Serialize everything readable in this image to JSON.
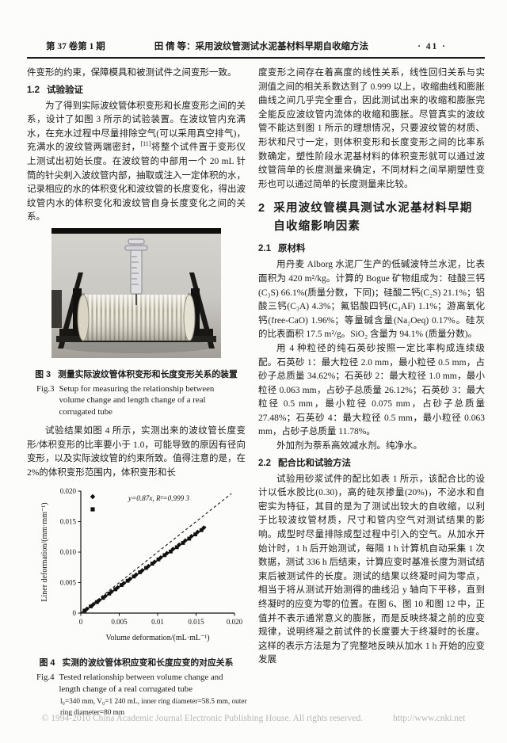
{
  "header": {
    "volume_issue": "第 37 卷第 1 期",
    "running_title": "田  倩 等：采用波纹管测试水泥基材料早期自收缩方法",
    "page_number": "· 41 ·"
  },
  "left": {
    "para_carryover": "件变形的约束，保障模具和被测试件之间变形一致。",
    "h12": {
      "num": "1.2",
      "label": "试验验证"
    },
    "para1a": "为了得到实际波纹管体积变形和长度变形之间的关系，设计了如图 3 所示的试验装置。在波纹管内充满水，在充水过程中尽量排除空气(可以采用真空排气)，充满水的波纹管两端密封，",
    "para1_sup": "[11]",
    "para1b": "将整个试件置于变形仪上测试出初始长度。在波纹管的中部用一个 20 mL 针筒的针尖刺入波纹管内部，抽取或注入一定体积的水，记录相应的水的体积变化和波纹管的长度变化，得出波纹管内水的体积变化和波纹管自身长度变化之间的关系。",
    "fig3": {
      "label_zh": "图 3",
      "caption_zh": "测量实际波纹管体积变形和长度变形关系的装置",
      "label_en": "Fig.3",
      "caption_en": "Setup for measuring the relationship between volume change and length change of a real corrugated tube"
    },
    "para2": "试验结果如图 4 所示，实测出来的波纹管长度变形/体积变形的比率要小于 1.0，可能导致的原因有径向变形，以及实际波纹管的约束所致。值得注意的是，在 2%的体积变形范围内，体积变形和长",
    "fig4": {
      "label_zh": "图 4",
      "caption_zh": "实测的波纹管体积应变和长度应变的对应关系",
      "label_en": "Fig.4",
      "caption_en": "Tested relationship between volume change and length change of a real corrugated tube",
      "note": "l₀=340 mm, V₀=1 240 mL, inner ring diameter=58.5 mm, outer ring diameter=80 mm"
    }
  },
  "right": {
    "para_carryover": "度变形之间存在着高度的线性关系，线性回归关系与实测值之间的相关系数达到了 0.999 以上，收缩曲线和膨胀曲线之间几乎完全重合，因此测试出来的收缩和膨胀完全能反应波纹管内流体的收缩和膨胀。尽管真实的波纹管不能达到图 1 所示的理想情况，只要波纹管的材质、形状和尺寸一定，则体积变形和长度变形之间的比率系数确定，塑性阶段水泥基材料的体积变形就可以通过波纹管简单的长度测量来确定，不同材料之间早期塑性变形也可以通过简单的长度测量来比较。",
    "h2": {
      "num": "2",
      "label": "采用波纹管模具测试水泥基材料早期自收缩影响因素"
    },
    "h21": {
      "num": "2.1",
      "label": "原材料"
    },
    "para_materials1": "用丹麦 Alborg 水泥厂生产的低碱波特兰水泥，比表面积为 420 m²/kg。计算的 Bogue 矿物组成为：硅酸三钙(C₃S) 66.1%(质量分数，下同)；硅酸二钙(C₂S) 21.1%；铝酸三钙(C₃A) 4.3%；氟铝酸四钙(C₄AF) 1.1%；游离氧化钙(free-CaO) 1.96%；等量碱含量(Na₂Oeq) 0.17%。硅灰的比表面积 17.5 m²/g。SiO₂ 含量为 94.1% (质量分数)。",
    "para_materials2": "用 4 种粒径的纯石英砂按照一定比率构成连续级配。石英砂 1：最大粒径 2.0 mm，最小粒径 0.5 mm，占砂子总质量 34.62%；石英砂 2：最大粒径 1.0 mm，最小粒径 0.063 mm，占砂子总质量 26.12%；石英砂 3：最大粒径 0.5 mm，最小粒径 0.075 mm，占砂子总质量 27.48%；石英砂 4：最大粒径 0.5 mm，最小粒径 0.063 mm，占砂子总质量 11.78%。",
    "para_materials3": "外加剂为萘系高效减水剂。纯净水。",
    "h22": {
      "num": "2.2",
      "label": "配合比和试验方法"
    },
    "para_method": "试验用砂浆试件的配比如表 1 所示，该配合比的设计以低水胶比(0.30)，高的硅灰掺量(20%)，不泌水和自密实为特征，其目的是为了测试出较大的自收缩，以利于比较波纹管材质，尺寸和管内空气对测试结果的影响。成型时尽量排除成型过程中引入的空气。从加水开始计时，1 h 后开始测试，每隔 1 h 计算机自动采集 1 次数据，测试 336 h 后结束，计算应变时基准长度为测试结束后被测试件的长度。测试的结果以终凝时间为零点，相当于将从测试开始测得的曲线沿 y 轴向下平移，直到终凝时的应变为零的位置。在图 6、图 10 和图 12 中，正值并不表示通常意义的膨胀，而是反映终凝之前的应变规律，说明终凝之前试件的长度要大于终凝时的长度。这样的表示方法是为了完整地反映从加水 1 h 开始的应变发展"
  },
  "footer": {
    "copyright": "© 1994-2010 China Academic Journal Electronic Publishing House. All rights reserved.",
    "url": "http://www.cnki.net"
  },
  "chart_data": {
    "type": "scatter",
    "title": "",
    "xlabel": "Volume deformation/(mL·mL⁻¹)",
    "ylabel": "Liner deformation/(mm·mm⁻¹)",
    "xlim": [
      0,
      0.02
    ],
    "ylim": [
      0,
      0.02
    ],
    "grid": false,
    "legend_position": "top-left-inside, markers only (no text)",
    "xtick_values": [
      0,
      0.005,
      0.01,
      0.015,
      0.02
    ],
    "xtick_labels": [
      "0",
      "0.005",
      "0.01",
      "0.015",
      "0.020"
    ],
    "ytick_values": [
      0,
      0.005,
      0.01,
      0.015,
      0.02
    ],
    "ytick_labels": [
      "0",
      "0.005",
      "0.010",
      "0.015",
      "0.020"
    ],
    "annotation": "y=0.87x, R²=0.999 3",
    "fit_line": {
      "slope": 0.87,
      "intercept": 0,
      "x_range": [
        0,
        0.0163
      ],
      "style": "solid"
    },
    "reference_line": {
      "slope": 1.0,
      "intercept": 0,
      "x_range": [
        0,
        0.0196
      ],
      "style": "dashed"
    },
    "series": [
      {
        "name": "series-diamond",
        "marker": "diamond",
        "points": [
          [
            0.0008,
            0.0007
          ],
          [
            0.0016,
            0.0014
          ],
          [
            0.0024,
            0.0021
          ],
          [
            0.0032,
            0.0028
          ],
          [
            0.004,
            0.0035
          ],
          [
            0.0048,
            0.0042
          ],
          [
            0.0056,
            0.0049
          ],
          [
            0.0064,
            0.0056
          ],
          [
            0.0072,
            0.0063
          ],
          [
            0.008,
            0.007
          ],
          [
            0.0088,
            0.0077
          ],
          [
            0.0096,
            0.0084
          ],
          [
            0.0104,
            0.0091
          ],
          [
            0.0112,
            0.0098
          ],
          [
            0.012,
            0.0105
          ],
          [
            0.0128,
            0.0112
          ],
          [
            0.0136,
            0.0119
          ],
          [
            0.0144,
            0.0126
          ],
          [
            0.0152,
            0.0133
          ],
          [
            0.016,
            0.014
          ]
        ]
      },
      {
        "name": "series-square",
        "marker": "square",
        "points": [
          [
            0.0005,
            0.0004
          ],
          [
            0.0013,
            0.0011
          ],
          [
            0.0021,
            0.0018
          ],
          [
            0.0029,
            0.0025
          ],
          [
            0.0037,
            0.0032
          ],
          [
            0.0045,
            0.0039
          ],
          [
            0.0053,
            0.0046
          ],
          [
            0.0061,
            0.0053
          ],
          [
            0.0069,
            0.006
          ],
          [
            0.0077,
            0.0067
          ],
          [
            0.0085,
            0.0074
          ],
          [
            0.0093,
            0.0081
          ],
          [
            0.0101,
            0.0088
          ],
          [
            0.0109,
            0.0095
          ],
          [
            0.0117,
            0.0101
          ],
          [
            0.0125,
            0.0108
          ],
          [
            0.0133,
            0.0115
          ],
          [
            0.0141,
            0.0122
          ],
          [
            0.0149,
            0.0129
          ],
          [
            0.0157,
            0.0136
          ]
        ]
      }
    ]
  }
}
